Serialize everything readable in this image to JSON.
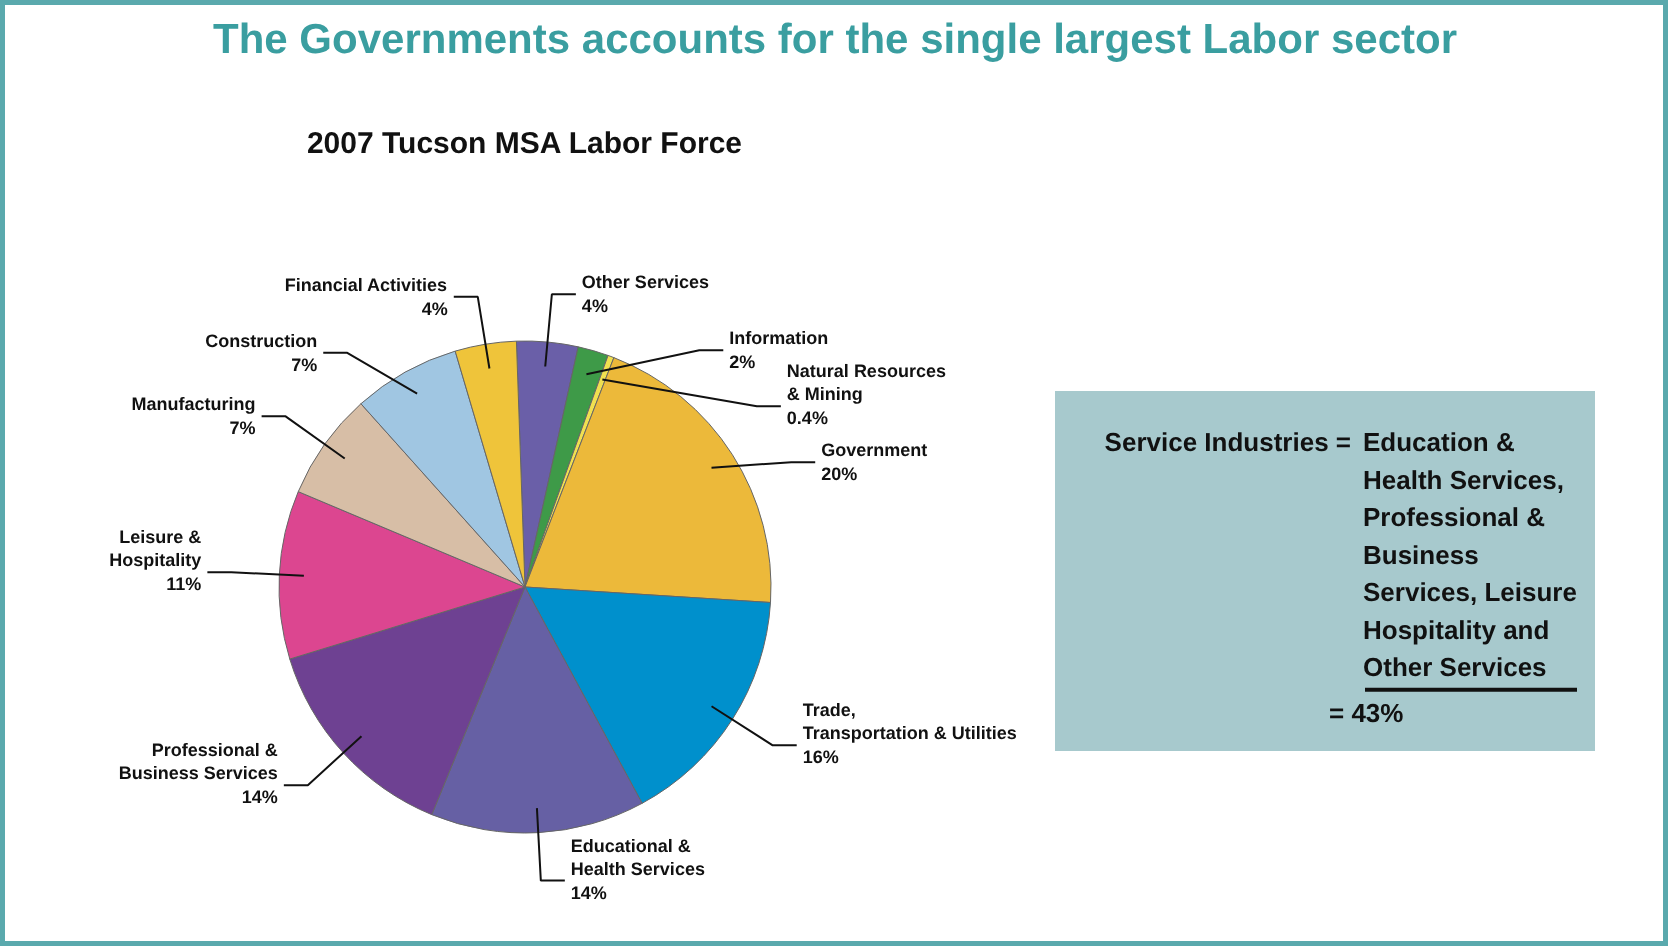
{
  "chart_data": {
    "type": "pie",
    "title": "The Governments accounts for the single largest Labor sector",
    "subtitle": "2007 Tucson MSA Labor Force",
    "categories": [
      "Other Services",
      "Information",
      "Natural Resources & Mining",
      "Government",
      "Trade, Transportation & Utilities",
      "Educational & Health Services",
      "Professional & Business Services",
      "Leisure & Hospitality",
      "Manufacturing",
      "Construction",
      "Financial Activities"
    ],
    "values": [
      4,
      2,
      0.4,
      20,
      16,
      14,
      14,
      11,
      7,
      7,
      4
    ],
    "colors": [
      "#6a5fa8",
      "#3e9a48",
      "#f0e050",
      "#ecb93a",
      "#0090cc",
      "#6660a4",
      "#6e4192",
      "#dc4690",
      "#d7bea6",
      "#a0c6e2",
      "#efc43a"
    ],
    "value_labels": [
      "4%",
      "2%",
      "0.4%",
      "20%",
      "16%",
      "14%",
      "14%",
      "11%",
      "7%",
      "7%",
      "4%"
    ],
    "annotations": [
      "Service Industries =",
      "Education  &\nHealth Services,\nProfessional &\nBusiness\nServices, Leisure\nHospitality and\nOther Services",
      "= 43%"
    ]
  }
}
